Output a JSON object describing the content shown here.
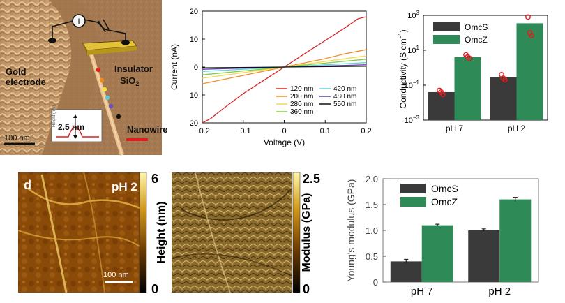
{
  "panel_a": {
    "labels": {
      "meter": "I",
      "electrode": [
        "Gold",
        "electrode"
      ],
      "insulator": [
        "Insulator",
        "SiO"
      ],
      "insulator_sub": "2",
      "scale": "100 nm",
      "height": "2.5 nm",
      "nanowire": "Nanowire",
      "inset_axis": "Height (nm)"
    },
    "dot_colors": [
      "#e0201a",
      "#f08a1e",
      "#f5e23a",
      "#5ec8d8",
      "#6a4fb8",
      "#111111"
    ]
  },
  "chart_iv": {
    "type": "line",
    "xlabel": "Voltage (V)",
    "ylabel": "Current (nA)",
    "xlim": [
      -0.2,
      0.2
    ],
    "ylim": [
      -20,
      20
    ],
    "xticks": [
      -0.2,
      -0.1,
      0,
      0.1,
      0.2
    ],
    "xtick_labels": [
      "−0.2",
      "−0.1",
      "0",
      "0.1",
      "0.2"
    ],
    "yticks": [
      -20,
      -10,
      0,
      10,
      20
    ],
    "ytick_labels": [
      "20",
      "10",
      "0",
      "10",
      "20"
    ],
    "legend_placement": "bottom-right",
    "series": [
      {
        "name": "120 nm",
        "color": "#d62728",
        "x": [
          -0.2,
          -0.18,
          -0.15,
          -0.1,
          -0.05,
          0,
          0.05,
          0.1,
          0.15,
          0.18,
          0.2
        ],
        "y": [
          -20,
          -18.5,
          -15,
          -9.5,
          -4.8,
          0,
          4.8,
          9.5,
          14.2,
          17.3,
          18
        ]
      },
      {
        "name": "200 nm",
        "color": "#f28e2b",
        "x": [
          -0.2,
          -0.1,
          0,
          0.1,
          0.15,
          0.2
        ],
        "y": [
          -6,
          -3,
          0,
          3,
          4.8,
          6.2
        ]
      },
      {
        "name": "280 nm",
        "color": "#f5d94a",
        "x": [
          -0.2,
          -0.1,
          0,
          0.1,
          0.2
        ],
        "y": [
          -4,
          -2,
          0,
          2,
          4
        ]
      },
      {
        "name": "360 nm",
        "color": "#7ccf44",
        "x": [
          -0.2,
          -0.1,
          0,
          0.1,
          0.2
        ],
        "y": [
          -2.8,
          -1.4,
          0,
          1.4,
          2.8
        ]
      },
      {
        "name": "420 nm",
        "color": "#62d3d0",
        "x": [
          -0.2,
          0,
          0.2
        ],
        "y": [
          -1.6,
          0,
          1.6
        ]
      },
      {
        "name": "480 nm",
        "color": "#5b3f9e",
        "x": [
          -0.2,
          0,
          0.2
        ],
        "y": [
          -0.8,
          0,
          0.8
        ]
      },
      {
        "name": "550 nm",
        "color": "#111111",
        "x": [
          -0.2,
          0,
          0.2
        ],
        "y": [
          -0.3,
          0,
          0.3
        ]
      }
    ]
  },
  "chart_cond": {
    "type": "bar",
    "ylabel": "Conductivity (S cm",
    "ylabel_sup": "−1",
    "ylabel_end": ")",
    "yscale": "log",
    "ylim": [
      0.001,
      1000
    ],
    "yticks": [
      {
        "value": 0.001,
        "base": "10",
        "exp": "−3"
      },
      {
        "value": 0.1,
        "base": "10",
        "exp": "−1"
      },
      {
        "value": 10,
        "base": "10",
        "exp": "1"
      },
      {
        "value": 1000,
        "base": "10",
        "exp": "3"
      }
    ],
    "categories": [
      "pH 7",
      "pH 2"
    ],
    "legend_placement": "top-left",
    "series": [
      {
        "name": "OmcS",
        "color": "#3a3a3a",
        "values": [
          0.04,
          0.28
        ],
        "points": [
          [
            0.05,
            0.04,
            0.03
          ],
          [
            0.4,
            0.25,
            0.2
          ]
        ]
      },
      {
        "name": "OmcZ",
        "color": "#2e8b57",
        "values": [
          4,
          350
        ],
        "points": [
          [
            5.5,
            4.2,
            3.5
          ],
          [
            800,
            100,
            70
          ]
        ]
      }
    ]
  },
  "panel_d": {
    "letter": "d",
    "condition": "pH 2",
    "scale": "100 nm",
    "height_bar": {
      "label": "Height (nm)",
      "max": "6",
      "min": "0"
    },
    "modulus_bar": {
      "label": "Modulus (GPa)",
      "max": "2.5",
      "min": "0"
    }
  },
  "chart_young": {
    "type": "bar",
    "ylabel": "Young's modulus (GPa)",
    "ylim": [
      0,
      2.0
    ],
    "yticks": [
      0,
      0.5,
      1.0,
      1.5,
      2.0
    ],
    "ytick_labels": [
      "0",
      "0.5",
      "1.0",
      "1.5",
      "2.0"
    ],
    "categories": [
      "pH 7",
      "pH 2"
    ],
    "legend_placement": "top-left",
    "series": [
      {
        "name": "OmcS",
        "color": "#3a3a3a",
        "values": [
          0.4,
          1.0
        ],
        "errors": [
          0.04,
          0.03
        ]
      },
      {
        "name": "OmcZ",
        "color": "#2e8b57",
        "values": [
          1.1,
          1.6
        ],
        "errors": [
          0.02,
          0.04
        ]
      }
    ]
  }
}
